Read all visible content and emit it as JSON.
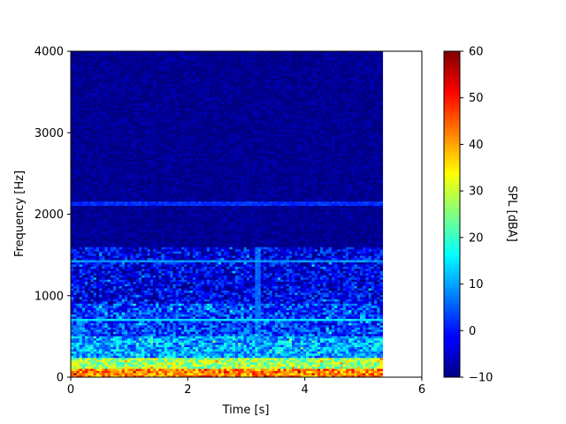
{
  "chart_data": {
    "type": "heatmap",
    "title": "",
    "xlabel": "Time [s]",
    "ylabel": "Frequency [Hz]",
    "xlim": [
      0,
      6
    ],
    "ylim": [
      0,
      4000
    ],
    "x_ticks": [
      "0",
      "2",
      "4",
      "6"
    ],
    "y_ticks": [
      "0",
      "1000",
      "2000",
      "3000",
      "4000"
    ],
    "data_x_extent": [
      0,
      5.33
    ],
    "colormap": "jet",
    "colorbar": {
      "label": "SPL [dBA]",
      "range": [
        -10,
        60
      ],
      "ticks": [
        "−10",
        "0",
        "10",
        "20",
        "30",
        "40",
        "50",
        "60"
      ]
    },
    "band_levels_dBA": [
      {
        "freq_max_hz": 100,
        "level": 42
      },
      {
        "freq_max_hz": 250,
        "level": 27
      },
      {
        "freq_max_hz": 500,
        "level": 10
      },
      {
        "freq_max_hz": 900,
        "level": 3
      },
      {
        "freq_max_hz": 1600,
        "level": -3
      },
      {
        "freq_max_hz": 4000,
        "level": -9
      }
    ],
    "tonal_lines": [
      {
        "freq_hz": 710,
        "level": 14
      },
      {
        "freq_hz": 1420,
        "level": 9
      },
      {
        "freq_hz": 2130,
        "level": 2
      }
    ],
    "transient": {
      "time_s": 3.2,
      "level": 6
    }
  }
}
